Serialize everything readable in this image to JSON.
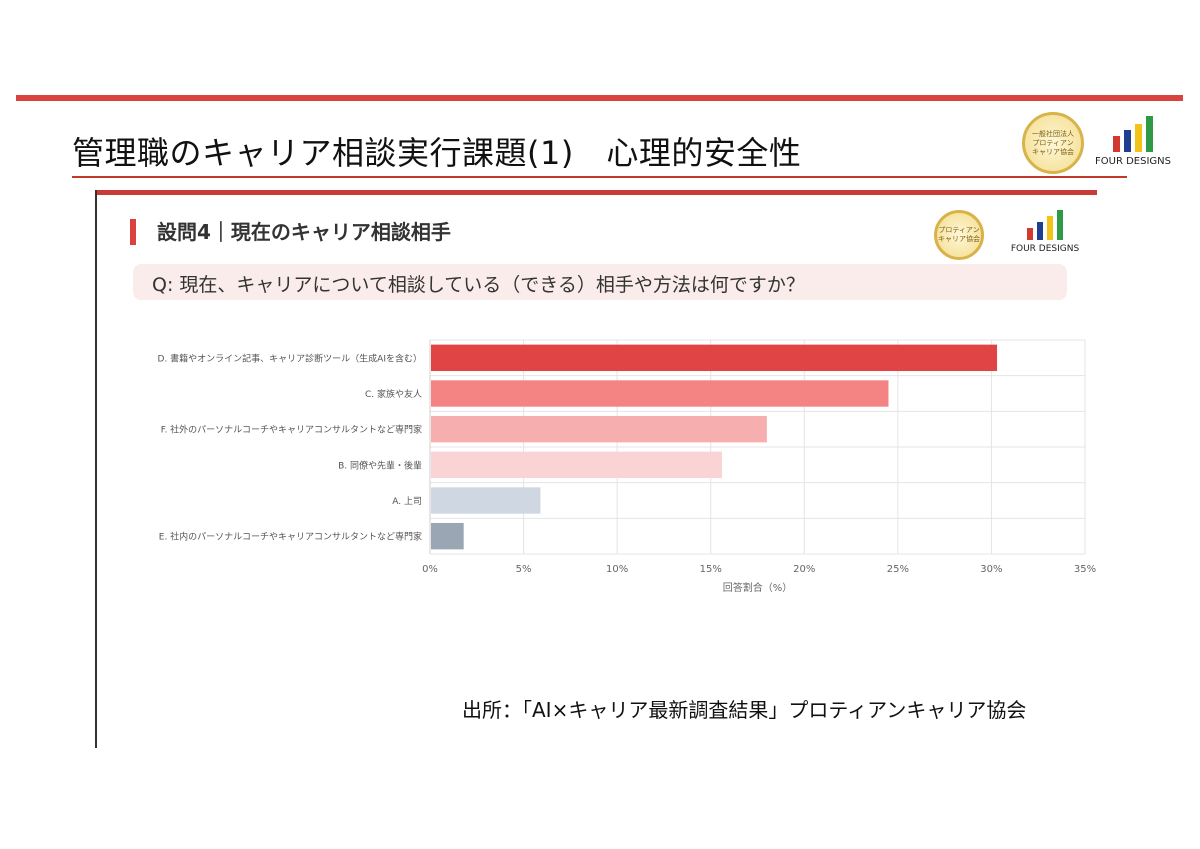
{
  "slide": {
    "title": "管理職のキャリア相談実行課題(1)　心理的安全性",
    "source": "出所：「AI×キャリア最新調査結果」プロティアンキャリア協会"
  },
  "logos": {
    "protean_small": "一般社団法人",
    "protean_name_1": "プロティアン",
    "protean_name_2": "キャリア協会",
    "four_designs": "FOUR DESIGNS"
  },
  "panel": {
    "heading": "設問4｜現在のキャリア相談相手",
    "question": "Q: 現在、キャリアについて相談している（できる）相手や方法は何ですか？"
  },
  "colors": {
    "accent": "#d9423f",
    "bar_colors": [
      "#e04444",
      "#f48484",
      "#f6aeae",
      "#fad4d4",
      "#cfd8e2",
      "#9aa6b4"
    ]
  },
  "chart_data": {
    "type": "bar",
    "orientation": "horizontal",
    "categories": [
      "D. 書籍やオンライン記事、キャリア診断ツール（生成AIを含む）",
      "C. 家族や友人",
      "F. 社外のパーソナルコーチやキャリアコンサルタントなど専門家",
      "B. 同僚や先輩・後輩",
      "A. 上司",
      "E. 社内のパーソナルコーチやキャリアコンサルタントなど専門家"
    ],
    "values": [
      30.3,
      24.5,
      18.0,
      15.6,
      5.9,
      1.8
    ],
    "xlabel": "回答割合（%）",
    "xlim": [
      0,
      35
    ],
    "xticks": [
      "0%",
      "5%",
      "10%",
      "15%",
      "20%",
      "25%",
      "30%",
      "35%"
    ],
    "grid": true
  }
}
